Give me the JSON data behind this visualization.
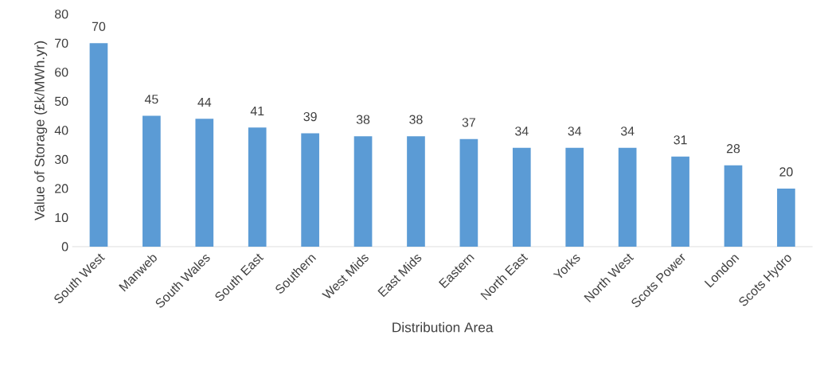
{
  "chart_data": {
    "type": "bar",
    "xlabel": "Distribution Area",
    "ylabel": "Value of Storage (£k/MWh.yr)",
    "categories": [
      "South West",
      "Manweb",
      "South Wales",
      "South East",
      "Southern",
      "West Mids",
      "East Mids",
      "Eastern",
      "North East",
      "Yorks",
      "North West",
      "Scots Power",
      "London",
      "Scots Hydro"
    ],
    "values": [
      70,
      45,
      44,
      41,
      39,
      38,
      38,
      37,
      34,
      34,
      34,
      31,
      28,
      20
    ],
    "color": "#5b9bd5",
    "data_labels": true,
    "grid": false,
    "ylim": [
      0,
      80
    ],
    "yticks": [
      0,
      10,
      20,
      30,
      40,
      50,
      60,
      70,
      80
    ]
  }
}
